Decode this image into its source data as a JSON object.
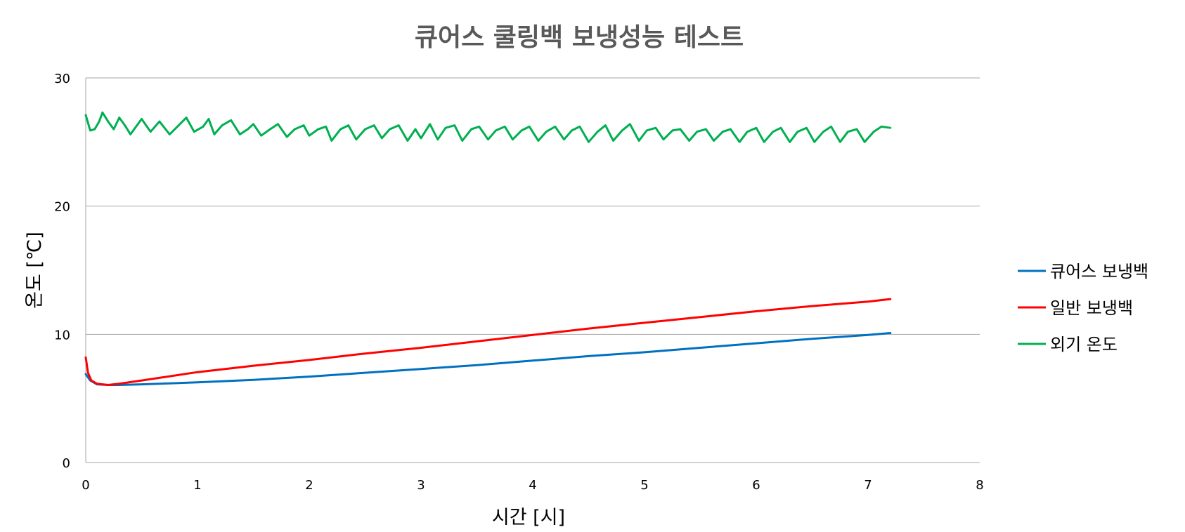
{
  "chart_data": {
    "type": "line",
    "title": "큐어스 쿨링백 보냉성능 테스트",
    "xlabel": "시간 [시]",
    "ylabel": "온도 [℃]",
    "xlim": [
      0,
      8
    ],
    "ylim": [
      0,
      30
    ],
    "x_ticks": [
      0,
      1,
      2,
      3,
      4,
      5,
      6,
      7,
      8
    ],
    "y_ticks": [
      0,
      10,
      20,
      30
    ],
    "grid": "horizontal",
    "legend_position": "right",
    "series": [
      {
        "name": "큐어스 보냉백",
        "color": "#0070c0",
        "points": [
          [
            0,
            6.9
          ],
          [
            0.04,
            6.4
          ],
          [
            0.1,
            6.1
          ],
          [
            0.2,
            6.05
          ],
          [
            0.3,
            6.05
          ],
          [
            0.5,
            6.1
          ],
          [
            1,
            6.25
          ],
          [
            1.5,
            6.45
          ],
          [
            2,
            6.7
          ],
          [
            2.5,
            7.0
          ],
          [
            3,
            7.3
          ],
          [
            3.5,
            7.6
          ],
          [
            4,
            7.95
          ],
          [
            4.5,
            8.3
          ],
          [
            5,
            8.6
          ],
          [
            5.5,
            8.95
          ],
          [
            6,
            9.3
          ],
          [
            6.5,
            9.65
          ],
          [
            7,
            9.95
          ],
          [
            7.2,
            10.1
          ]
        ]
      },
      {
        "name": "일반 보냉백",
        "color": "#ff0000",
        "points": [
          [
            0,
            8.2
          ],
          [
            0.02,
            7.0
          ],
          [
            0.05,
            6.4
          ],
          [
            0.1,
            6.15
          ],
          [
            0.2,
            6.05
          ],
          [
            0.3,
            6.15
          ],
          [
            0.5,
            6.4
          ],
          [
            1,
            7.05
          ],
          [
            1.5,
            7.55
          ],
          [
            2,
            8.0
          ],
          [
            2.5,
            8.5
          ],
          [
            3,
            8.95
          ],
          [
            3.5,
            9.45
          ],
          [
            4,
            9.95
          ],
          [
            4.5,
            10.45
          ],
          [
            5,
            10.9
          ],
          [
            5.5,
            11.35
          ],
          [
            6,
            11.8
          ],
          [
            6.5,
            12.2
          ],
          [
            7,
            12.55
          ],
          [
            7.2,
            12.75
          ]
        ]
      },
      {
        "name": "외기 온도",
        "color": "#00b050",
        "points": [
          [
            0,
            27.1
          ],
          [
            0.04,
            25.9
          ],
          [
            0.08,
            26.0
          ],
          [
            0.12,
            26.6
          ],
          [
            0.15,
            27.3
          ],
          [
            0.2,
            26.6
          ],
          [
            0.25,
            26.0
          ],
          [
            0.3,
            26.9
          ],
          [
            0.35,
            26.3
          ],
          [
            0.4,
            25.6
          ],
          [
            0.45,
            26.2
          ],
          [
            0.5,
            26.8
          ],
          [
            0.58,
            25.8
          ],
          [
            0.66,
            26.6
          ],
          [
            0.75,
            25.6
          ],
          [
            0.82,
            26.2
          ],
          [
            0.9,
            26.9
          ],
          [
            0.97,
            25.8
          ],
          [
            1.05,
            26.2
          ],
          [
            1.1,
            26.8
          ],
          [
            1.15,
            25.6
          ],
          [
            1.22,
            26.3
          ],
          [
            1.3,
            26.7
          ],
          [
            1.38,
            25.6
          ],
          [
            1.45,
            26.0
          ],
          [
            1.5,
            26.4
          ],
          [
            1.57,
            25.5
          ],
          [
            1.65,
            26.0
          ],
          [
            1.72,
            26.4
          ],
          [
            1.8,
            25.4
          ],
          [
            1.87,
            26.0
          ],
          [
            1.95,
            26.3
          ],
          [
            2.0,
            25.5
          ],
          [
            2.08,
            26.0
          ],
          [
            2.15,
            26.2
          ],
          [
            2.2,
            25.1
          ],
          [
            2.28,
            26.0
          ],
          [
            2.35,
            26.3
          ],
          [
            2.42,
            25.2
          ],
          [
            2.5,
            26.0
          ],
          [
            2.58,
            26.3
          ],
          [
            2.65,
            25.3
          ],
          [
            2.72,
            26.0
          ],
          [
            2.8,
            26.3
          ],
          [
            2.88,
            25.1
          ],
          [
            2.95,
            26.0
          ],
          [
            3.0,
            25.3
          ],
          [
            3.08,
            26.4
          ],
          [
            3.15,
            25.2
          ],
          [
            3.22,
            26.1
          ],
          [
            3.3,
            26.3
          ],
          [
            3.37,
            25.1
          ],
          [
            3.45,
            26.0
          ],
          [
            3.52,
            26.2
          ],
          [
            3.6,
            25.2
          ],
          [
            3.67,
            25.9
          ],
          [
            3.75,
            26.2
          ],
          [
            3.82,
            25.2
          ],
          [
            3.9,
            25.9
          ],
          [
            3.97,
            26.2
          ],
          [
            4.05,
            25.1
          ],
          [
            4.12,
            25.8
          ],
          [
            4.2,
            26.2
          ],
          [
            4.28,
            25.2
          ],
          [
            4.35,
            25.9
          ],
          [
            4.42,
            26.2
          ],
          [
            4.5,
            25.0
          ],
          [
            4.58,
            25.8
          ],
          [
            4.65,
            26.3
          ],
          [
            4.72,
            25.1
          ],
          [
            4.8,
            25.9
          ],
          [
            4.87,
            26.4
          ],
          [
            4.95,
            25.1
          ],
          [
            5.02,
            25.9
          ],
          [
            5.1,
            26.1
          ],
          [
            5.17,
            25.2
          ],
          [
            5.25,
            25.9
          ],
          [
            5.32,
            26.0
          ],
          [
            5.4,
            25.1
          ],
          [
            5.47,
            25.8
          ],
          [
            5.55,
            26.0
          ],
          [
            5.62,
            25.1
          ],
          [
            5.7,
            25.8
          ],
          [
            5.77,
            26.0
          ],
          [
            5.85,
            25.0
          ],
          [
            5.92,
            25.8
          ],
          [
            6.0,
            26.1
          ],
          [
            6.07,
            25.0
          ],
          [
            6.15,
            25.8
          ],
          [
            6.22,
            26.1
          ],
          [
            6.3,
            25.0
          ],
          [
            6.37,
            25.8
          ],
          [
            6.45,
            26.1
          ],
          [
            6.52,
            25.0
          ],
          [
            6.6,
            25.8
          ],
          [
            6.67,
            26.2
          ],
          [
            6.75,
            25.0
          ],
          [
            6.82,
            25.8
          ],
          [
            6.9,
            26.0
          ],
          [
            6.97,
            25.0
          ],
          [
            7.05,
            25.8
          ],
          [
            7.12,
            26.2
          ],
          [
            7.2,
            26.1
          ]
        ]
      }
    ]
  }
}
